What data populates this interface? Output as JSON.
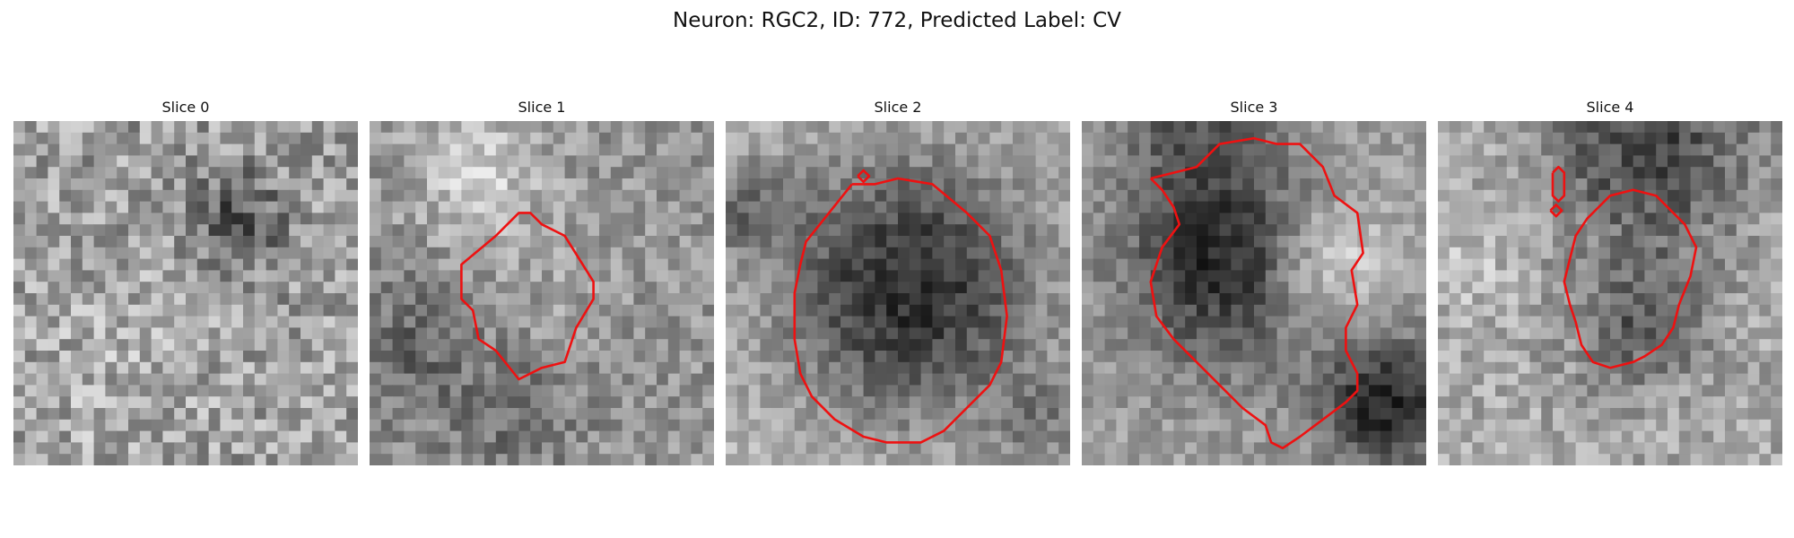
{
  "figure": {
    "title": "Neuron: RGC2, ID: 772, Predicted Label: CV"
  },
  "panels": [
    {
      "title": "Slice 0"
    },
    {
      "title": "Slice 1"
    },
    {
      "title": "Slice 2"
    },
    {
      "title": "Slice 3"
    },
    {
      "title": "Slice 4"
    }
  ],
  "colors": {
    "contour": "#ee1111",
    "colormap": "grayscale"
  }
}
